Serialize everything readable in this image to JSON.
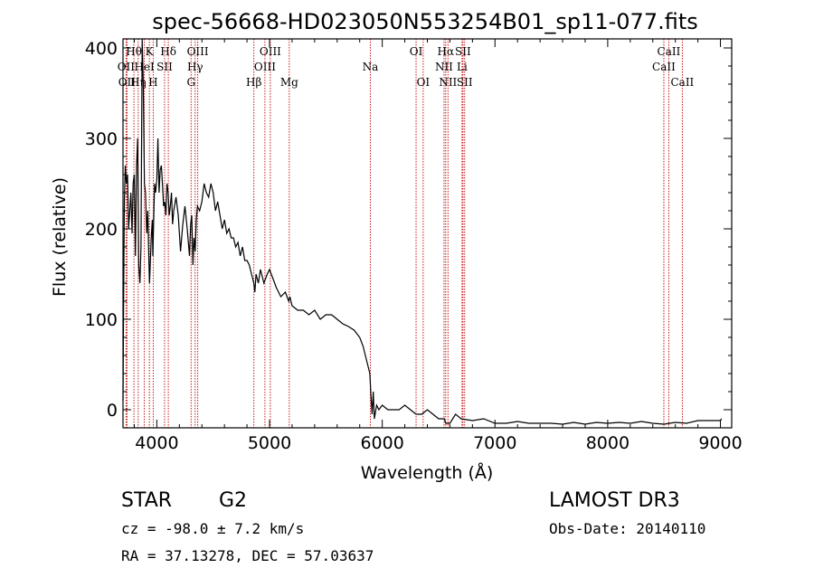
{
  "chart_data": {
    "type": "line",
    "title": "spec-56668-HD023050N553254B01_sp11-077.fits",
    "xlabel": "Wavelength (Å)",
    "ylabel": "Flux (relative)",
    "xlim": [
      3700,
      9100
    ],
    "ylim": [
      -20,
      410
    ],
    "xticks": [
      4000,
      5000,
      6000,
      7000,
      8000,
      9000
    ],
    "yticks": [
      0,
      100,
      200,
      300,
      400
    ],
    "series": [
      {
        "name": "spectrum",
        "x": [
          3700,
          3705,
          3712,
          3720,
          3730,
          3740,
          3750,
          3760,
          3770,
          3780,
          3790,
          3800,
          3810,
          3820,
          3830,
          3840,
          3850,
          3860,
          3870,
          3880,
          3890,
          3900,
          3910,
          3920,
          3930,
          3935,
          3940,
          3950,
          3960,
          3965,
          3970,
          3980,
          3990,
          4000,
          4010,
          4020,
          4030,
          4040,
          4050,
          4060,
          4070,
          4080,
          4090,
          4100,
          4110,
          4120,
          4130,
          4140,
          4150,
          4170,
          4190,
          4210,
          4230,
          4250,
          4270,
          4290,
          4300,
          4310,
          4320,
          4330,
          4340,
          4350,
          4360,
          4380,
          4400,
          4420,
          4440,
          4460,
          4480,
          4500,
          4520,
          4540,
          4560,
          4580,
          4600,
          4620,
          4640,
          4660,
          4680,
          4700,
          4720,
          4740,
          4760,
          4780,
          4800,
          4820,
          4840,
          4860,
          4870,
          4880,
          4900,
          4920,
          4950,
          4980,
          5000,
          5030,
          5060,
          5100,
          5140,
          5170,
          5180,
          5200,
          5250,
          5300,
          5350,
          5400,
          5450,
          5500,
          5550,
          5600,
          5650,
          5700,
          5750,
          5800,
          5830,
          5860,
          5880,
          5890,
          5900,
          5910,
          5920,
          5930,
          5950,
          5970,
          6000,
          6050,
          6100,
          6150,
          6200,
          6250,
          6300,
          6350,
          6400,
          6450,
          6500,
          6550,
          6563,
          6600,
          6650,
          6700,
          6800,
          6900,
          7000,
          7100,
          7200,
          7300,
          7400,
          7500,
          7600,
          7700,
          7800,
          7900,
          8000,
          8100,
          8200,
          8300,
          8400,
          8500,
          8600,
          8700,
          8800,
          8900,
          9000,
          9010
        ],
        "y": [
          10,
          110,
          230,
          270,
          250,
          260,
          200,
          220,
          240,
          195,
          250,
          260,
          170,
          270,
          300,
          160,
          140,
          180,
          410,
          360,
          250,
          240,
          195,
          220,
          160,
          140,
          155,
          190,
          210,
          170,
          200,
          250,
          240,
          255,
          300,
          240,
          265,
          270,
          250,
          225,
          230,
          215,
          250,
          240,
          215,
          225,
          240,
          205,
          220,
          235,
          215,
          175,
          205,
          225,
          200,
          170,
          205,
          215,
          160,
          190,
          175,
          210,
          225,
          220,
          230,
          250,
          240,
          235,
          250,
          240,
          220,
          230,
          215,
          200,
          210,
          195,
          200,
          190,
          190,
          180,
          185,
          170,
          180,
          165,
          165,
          160,
          150,
          140,
          130,
          150,
          140,
          155,
          140,
          150,
          155,
          145,
          135,
          125,
          130,
          120,
          125,
          115,
          110,
          110,
          105,
          110,
          100,
          105,
          105,
          100,
          95,
          92,
          88,
          80,
          70,
          55,
          45,
          40,
          15,
          -5,
          20,
          -10,
          5,
          0,
          5,
          0,
          0,
          0,
          5,
          0,
          -5,
          -5,
          0,
          -5,
          -10,
          -10,
          -15,
          -15,
          -5,
          -10,
          -12,
          -10,
          -15,
          -15,
          -13,
          -15,
          -15,
          -15,
          -16,
          -14,
          -16,
          -14,
          -15,
          -14,
          -15,
          -13,
          -15,
          -16,
          -14,
          -15,
          -12,
          -12,
          -12,
          -10
        ]
      }
    ],
    "spectral_lines": [
      {
        "label": "Hθ",
        "wavelength": 3797,
        "row": 1
      },
      {
        "label": "OII",
        "wavelength": 3727,
        "row": 2
      },
      {
        "label": "OII",
        "wavelength": 3735,
        "row": 3
      },
      {
        "label": "Hη",
        "wavelength": 3835,
        "row": 3
      },
      {
        "label": "HeI",
        "wavelength": 3889,
        "row": 2
      },
      {
        "label": "K",
        "wavelength": 3934,
        "row": 1
      },
      {
        "label": "H",
        "wavelength": 3968,
        "row": 3
      },
      {
        "label": "SII",
        "wavelength": 4069,
        "row": 2
      },
      {
        "label": "Hδ",
        "wavelength": 4102,
        "row": 1
      },
      {
        "label": "G",
        "wavelength": 4304,
        "row": 3
      },
      {
        "label": "Hγ",
        "wavelength": 4340,
        "row": 2
      },
      {
        "label": "OIII",
        "wavelength": 4363,
        "row": 1
      },
      {
        "label": "Hβ",
        "wavelength": 4861,
        "row": 3
      },
      {
        "label": "OIII",
        "wavelength": 4959,
        "row": 2
      },
      {
        "label": "OIII",
        "wavelength": 5007,
        "row": 1
      },
      {
        "label": "Mg",
        "wavelength": 5175,
        "row": 3
      },
      {
        "label": "Na",
        "wavelength": 5894,
        "row": 2
      },
      {
        "label": "OI",
        "wavelength": 6300,
        "row": 1
      },
      {
        "label": "OI",
        "wavelength": 6363,
        "row": 3
      },
      {
        "label": "NII",
        "wavelength": 6548,
        "row": 2
      },
      {
        "label": "Hα",
        "wavelength": 6563,
        "row": 1
      },
      {
        "label": "NII",
        "wavelength": 6583,
        "row": 3
      },
      {
        "label": "SII",
        "wavelength": 6716,
        "row": 1
      },
      {
        "label": "Li",
        "wavelength": 6708,
        "row": 2
      },
      {
        "label": "SII",
        "wavelength": 6731,
        "row": 3
      },
      {
        "label": "CaII",
        "wavelength": 8498,
        "row": 2
      },
      {
        "label": "CaII",
        "wavelength": 8542,
        "row": 1
      },
      {
        "label": "CaII",
        "wavelength": 8662,
        "row": 3
      }
    ]
  },
  "info": {
    "class_label": "STAR",
    "subclass_label": "G2",
    "survey": "LAMOST DR3",
    "redshift_line": "cz = -98.0 ± 7.2 km/s",
    "obs_date_line": "Obs-Date: 20140110",
    "coords_line": "RA =  37.13278, DEC =  57.03637"
  },
  "colors": {
    "line_marker": "#c00000",
    "spectrum": "#000000",
    "axes": "#000000"
  }
}
